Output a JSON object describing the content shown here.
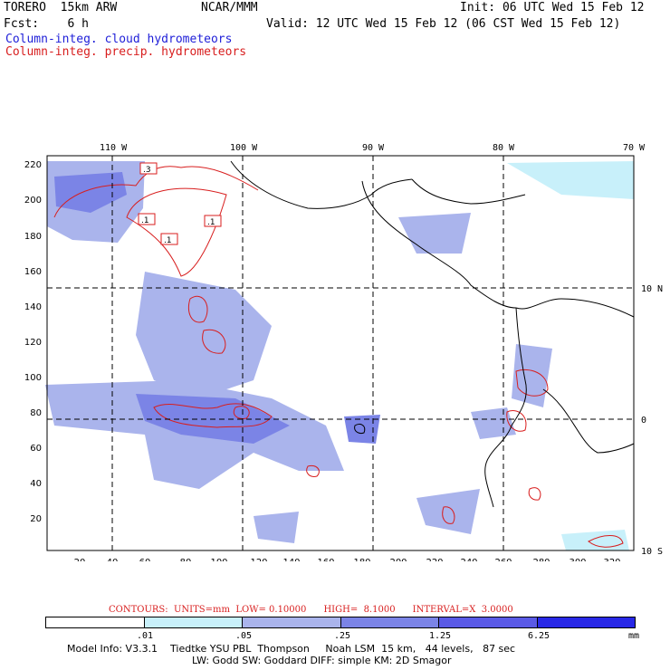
{
  "header": {
    "model": "TORERO  15km ARW",
    "center": "NCAR/MMM",
    "init": "Init: 06 UTC Wed 15 Feb 12",
    "fcst": "Fcst:    6 h",
    "valid": "Valid: 12 UTC Wed 15 Feb 12 (06 CST Wed 15 Feb 12)",
    "field_blue": "Column-integ. cloud hydrometeors",
    "field_red": "Column-integ. precip. hydrometeors"
  },
  "map": {
    "top_lon_labels": [
      "110 W",
      "100 W",
      "90 W",
      "80 W",
      "70 W"
    ],
    "right_lat_labels": [
      "10 N",
      "0",
      "10 S"
    ],
    "left_axis": [
      "220",
      "200",
      "180",
      "160",
      "140",
      "120",
      "100",
      "80",
      "60",
      "40",
      "20"
    ],
    "bottom_axis": [
      "20",
      "40",
      "60",
      "80",
      "100",
      "120",
      "140",
      "160",
      "180",
      "200",
      "220",
      "240",
      "260",
      "280",
      "300",
      "320"
    ],
    "contour_labels": [
      ".3",
      ".1",
      ".1",
      ".1"
    ],
    "colors": {
      "land": "#000000",
      "grid": "#000000",
      "precip_contour": "#d81e1e",
      "cloud_light": "#c8f0fa",
      "cloud_mid": "#aab4ec",
      "cloud_dark": "#7b84e6"
    }
  },
  "footer": {
    "contours_line": "CONTOURS:  UNITS=mm  LOW= 0.10000      HIGH=  8.1000      INTERVAL=X  3.0000",
    "colorbar_ticks": [
      ".01",
      ".05",
      ".25",
      "1.25",
      "6.25"
    ],
    "colorbar_unit": "mm",
    "colorbar_colors": [
      "#ffffff",
      "#c8f0fa",
      "#aab4ec",
      "#7b84e6",
      "#5a5ae6",
      "#2828e6"
    ],
    "model_info_1": "Model Info: V3.3.1    Tiedtke YSU PBL  Thompson     Noah LSM  15 km,   44 levels,   87 sec",
    "model_info_2": "LW: Godd SW: Goddard DIFF: simple KM: 2D Smagor"
  }
}
